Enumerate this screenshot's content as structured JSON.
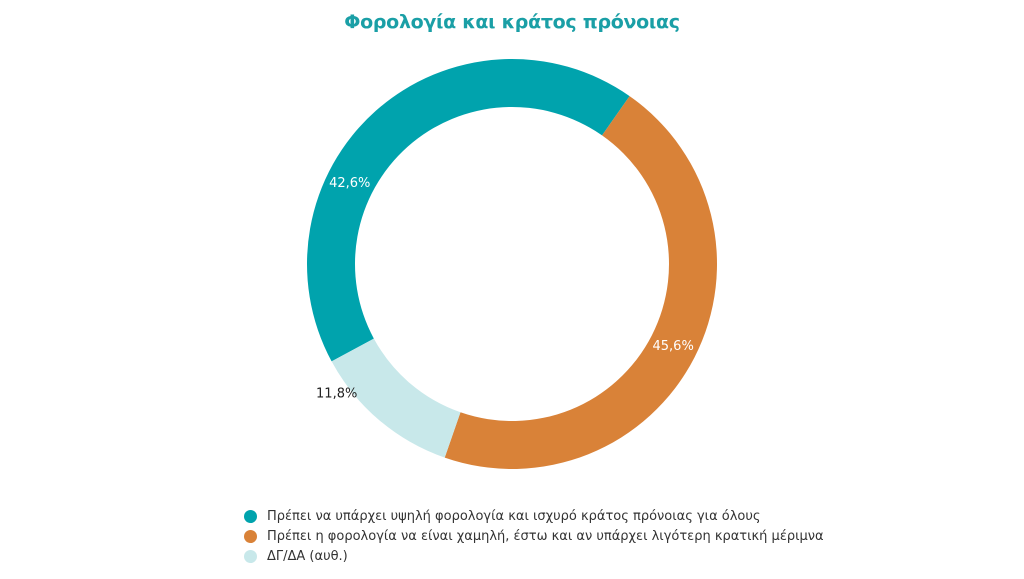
{
  "chart_data": {
    "type": "pie",
    "title": "Φορολογία και κράτος πρόνοιας",
    "categories": [
      "Πρέπει να υπάρχει υψηλή φορολογία και ισχυρό κράτος πρόνοιας για όλους",
      "Πρέπει η φορολογία να είναι χαμηλή, έστω και αν υπάρχει λιγότερη κρατική μέριμνα",
      "ΔΓ/ΔΑ (αυθ.)"
    ],
    "values": [
      42.6,
      45.6,
      11.8
    ],
    "value_labels": [
      "42,6%",
      "45,6%",
      "11,8%"
    ],
    "colors": [
      "#00A3AD",
      "#D98238",
      "#C8E8EA"
    ],
    "label_colors": [
      "#FFFFFF",
      "#FFFFFF",
      "#222222"
    ],
    "legend_position": "bottom-left"
  },
  "title_color": "#1A9FA6"
}
